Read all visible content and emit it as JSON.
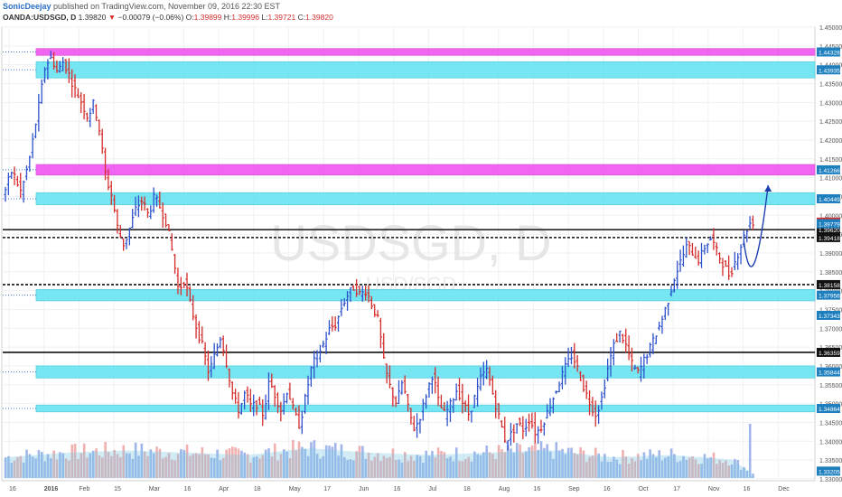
{
  "header": {
    "author": "SonicDeejay",
    "published": "published on TradingView.com, November 09, 2016 22:30 EST"
  },
  "ohlc_line": {
    "symbol": "OANDA:USDSGD, D",
    "last": "1.39820",
    "change_arrow": "▼",
    "change": "−0.00079 (−0.06%)",
    "o_label": "O:",
    "o": "1.39899",
    "h_label": "H:",
    "h": "1.39996",
    "l_label": "L:",
    "l": "1.39721",
    "c_label": "C:",
    "c": "1.39820"
  },
  "watermark": {
    "main": "USDSGD, D",
    "sub": "USD/SGD"
  },
  "colors": {
    "up": "#2e52cc",
    "down": "#d62d2d",
    "zone_cyan": "#5fe2f2",
    "zone_magenta": "#ee4cee",
    "vol_up": "#8fa8e6",
    "vol_down": "#eda2a2",
    "price_tag": "#1e7fbf",
    "price_tag_last": "#d62d2d",
    "arrow": "#1c3fb0"
  },
  "chart_data": {
    "type": "candlestick",
    "y_axis": {
      "min": 1.3295,
      "max": 1.45,
      "ticks": [
        "1.45000",
        "1.44500",
        "1.44000",
        "1.43500",
        "1.43000",
        "1.42500",
        "1.42000",
        "1.41500",
        "1.41000",
        "1.40500",
        "1.40000",
        "1.39500",
        "1.39000",
        "1.38500",
        "1.38000",
        "1.37500",
        "1.37000",
        "1.36500",
        "1.36000",
        "1.35500",
        "1.35000",
        "1.34500",
        "1.34000",
        "1.33500",
        "1.33000"
      ]
    },
    "x_axis": {
      "labels": [
        "16",
        "2016",
        "Feb",
        "15",
        "Mar",
        "16",
        "Apr",
        "18",
        "May",
        "17",
        "Jun",
        "16",
        "Jul",
        "18",
        "Aug",
        "16",
        "Sep",
        "16",
        "Oct",
        "17",
        "Nov",
        "16",
        "Dec"
      ]
    },
    "zones": [
      {
        "kind": "magenta",
        "low": 1.4425,
        "high": 1.4443,
        "label": "1.44328"
      },
      {
        "kind": "cyan",
        "low": 1.4365,
        "high": 1.4408,
        "label": "1.43935"
      },
      {
        "kind": "magenta",
        "low": 1.4107,
        "high": 1.4135,
        "label": "1.41266"
      },
      {
        "kind": "cyan",
        "low": 1.4028,
        "high": 1.406,
        "label": "1.40449"
      },
      {
        "kind": "cyan",
        "low": 1.3773,
        "high": 1.3803,
        "label": "1.37956"
      },
      {
        "kind": "cyan",
        "low": 1.3568,
        "high": 1.36,
        "label": "1.35844"
      },
      {
        "kind": "cyan",
        "low": 1.3478,
        "high": 1.3496,
        "label": "1.34864"
      }
    ],
    "lines": [
      {
        "style": "solid",
        "value": 1.3962,
        "label": "1.39620"
      },
      {
        "style": "dashed",
        "value": 1.3941,
        "label": "1.39418"
      },
      {
        "style": "dashed",
        "value": 1.3816,
        "label": "1.38158"
      },
      {
        "style": "solid",
        "value": 1.3636,
        "label": "1.36359"
      }
    ],
    "price_tags": [
      {
        "value": 1.3982,
        "label": "1.39820",
        "last": true
      },
      {
        "value": 1.39779,
        "label": "1.39779"
      },
      {
        "value": 1.37343,
        "label": "1.37343"
      },
      {
        "value": 1.33205,
        "label": "1.33205"
      }
    ],
    "path": [
      [
        0,
        1.405
      ],
      [
        3,
        1.412
      ],
      [
        6,
        1.406
      ],
      [
        9,
        1.416
      ],
      [
        12,
        1.43
      ],
      [
        14,
        1.44
      ],
      [
        16,
        1.442
      ],
      [
        18,
        1.438
      ],
      [
        20,
        1.441
      ],
      [
        22,
        1.437
      ],
      [
        24,
        1.433
      ],
      [
        26,
        1.43
      ],
      [
        28,
        1.426
      ],
      [
        30,
        1.43
      ],
      [
        32,
        1.422
      ],
      [
        34,
        1.41
      ],
      [
        36,
        1.405
      ],
      [
        38,
        1.396
      ],
      [
        40,
        1.392
      ],
      [
        42,
        1.397
      ],
      [
        44,
        1.402
      ],
      [
        46,
        1.404
      ],
      [
        48,
        1.4
      ],
      [
        50,
        1.405
      ],
      [
        52,
        1.402
      ],
      [
        54,
        1.398
      ],
      [
        56,
        1.39
      ],
      [
        58,
        1.38
      ],
      [
        60,
        1.383
      ],
      [
        62,
        1.376
      ],
      [
        64,
        1.37
      ],
      [
        66,
        1.365
      ],
      [
        68,
        1.358
      ],
      [
        70,
        1.363
      ],
      [
        72,
        1.368
      ],
      [
        74,
        1.36
      ],
      [
        76,
        1.352
      ],
      [
        78,
        1.348
      ],
      [
        80,
        1.353
      ],
      [
        82,
        1.349
      ],
      [
        84,
        1.35
      ],
      [
        86,
        1.347
      ],
      [
        88,
        1.356
      ],
      [
        90,
        1.352
      ],
      [
        92,
        1.348
      ],
      [
        94,
        1.354
      ],
      [
        96,
        1.348
      ],
      [
        98,
        1.344
      ],
      [
        100,
        1.352
      ],
      [
        102,
        1.36
      ],
      [
        104,
        1.363
      ],
      [
        106,
        1.366
      ],
      [
        108,
        1.37
      ],
      [
        110,
        1.371
      ],
      [
        112,
        1.376
      ],
      [
        114,
        1.379
      ],
      [
        116,
        1.381
      ],
      [
        118,
        1.379
      ],
      [
        120,
        1.38
      ],
      [
        122,
        1.376
      ],
      [
        124,
        1.372
      ],
      [
        126,
        1.36
      ],
      [
        128,
        1.354
      ],
      [
        130,
        1.35
      ],
      [
        132,
        1.356
      ],
      [
        134,
        1.348
      ],
      [
        136,
        1.343
      ],
      [
        138,
        1.347
      ],
      [
        140,
        1.353
      ],
      [
        142,
        1.358
      ],
      [
        144,
        1.35
      ],
      [
        146,
        1.347
      ],
      [
        148,
        1.35
      ],
      [
        150,
        1.354
      ],
      [
        152,
        1.35
      ],
      [
        154,
        1.347
      ],
      [
        156,
        1.352
      ],
      [
        158,
        1.357
      ],
      [
        160,
        1.359
      ],
      [
        162,
        1.352
      ],
      [
        164,
        1.346
      ],
      [
        166,
        1.34
      ],
      [
        168,
        1.342
      ],
      [
        170,
        1.345
      ],
      [
        172,
        1.343
      ],
      [
        174,
        1.346
      ],
      [
        176,
        1.342
      ],
      [
        178,
        1.344
      ],
      [
        180,
        1.348
      ],
      [
        182,
        1.352
      ],
      [
        184,
        1.356
      ],
      [
        186,
        1.36
      ],
      [
        188,
        1.363
      ],
      [
        190,
        1.359
      ],
      [
        192,
        1.354
      ],
      [
        194,
        1.35
      ],
      [
        196,
        1.347
      ],
      [
        198,
        1.352
      ],
      [
        200,
        1.36
      ],
      [
        202,
        1.366
      ],
      [
        204,
        1.369
      ],
      [
        206,
        1.365
      ],
      [
        208,
        1.36
      ],
      [
        210,
        1.358
      ],
      [
        212,
        1.362
      ],
      [
        214,
        1.365
      ],
      [
        216,
        1.369
      ],
      [
        218,
        1.373
      ],
      [
        220,
        1.378
      ],
      [
        222,
        1.384
      ],
      [
        224,
        1.388
      ],
      [
        226,
        1.392
      ],
      [
        228,
        1.39
      ],
      [
        230,
        1.388
      ],
      [
        232,
        1.392
      ],
      [
        234,
        1.394
      ],
      [
        236,
        1.39
      ],
      [
        238,
        1.387
      ],
      [
        240,
        1.384
      ],
      [
        242,
        1.388
      ],
      [
        244,
        1.3925
      ],
      [
        246,
        1.3968
      ],
      [
        247,
        1.3982
      ]
    ],
    "volume_path": [
      [
        0,
        0.45
      ],
      [
        20,
        0.55
      ],
      [
        40,
        0.6
      ],
      [
        60,
        0.55
      ],
      [
        80,
        0.5
      ],
      [
        100,
        0.65
      ],
      [
        120,
        0.55
      ],
      [
        140,
        0.5
      ],
      [
        160,
        0.55
      ],
      [
        180,
        0.6
      ],
      [
        200,
        0.45
      ],
      [
        220,
        0.5
      ],
      [
        240,
        0.4
      ],
      [
        247,
        0.1
      ]
    ],
    "volume_spike_fraction": 1.0,
    "projection_arrow": {
      "from": [
        244,
        1.393
      ],
      "via": [
        247,
        1.384
      ],
      "to": [
        252,
        1.408
      ]
    }
  }
}
